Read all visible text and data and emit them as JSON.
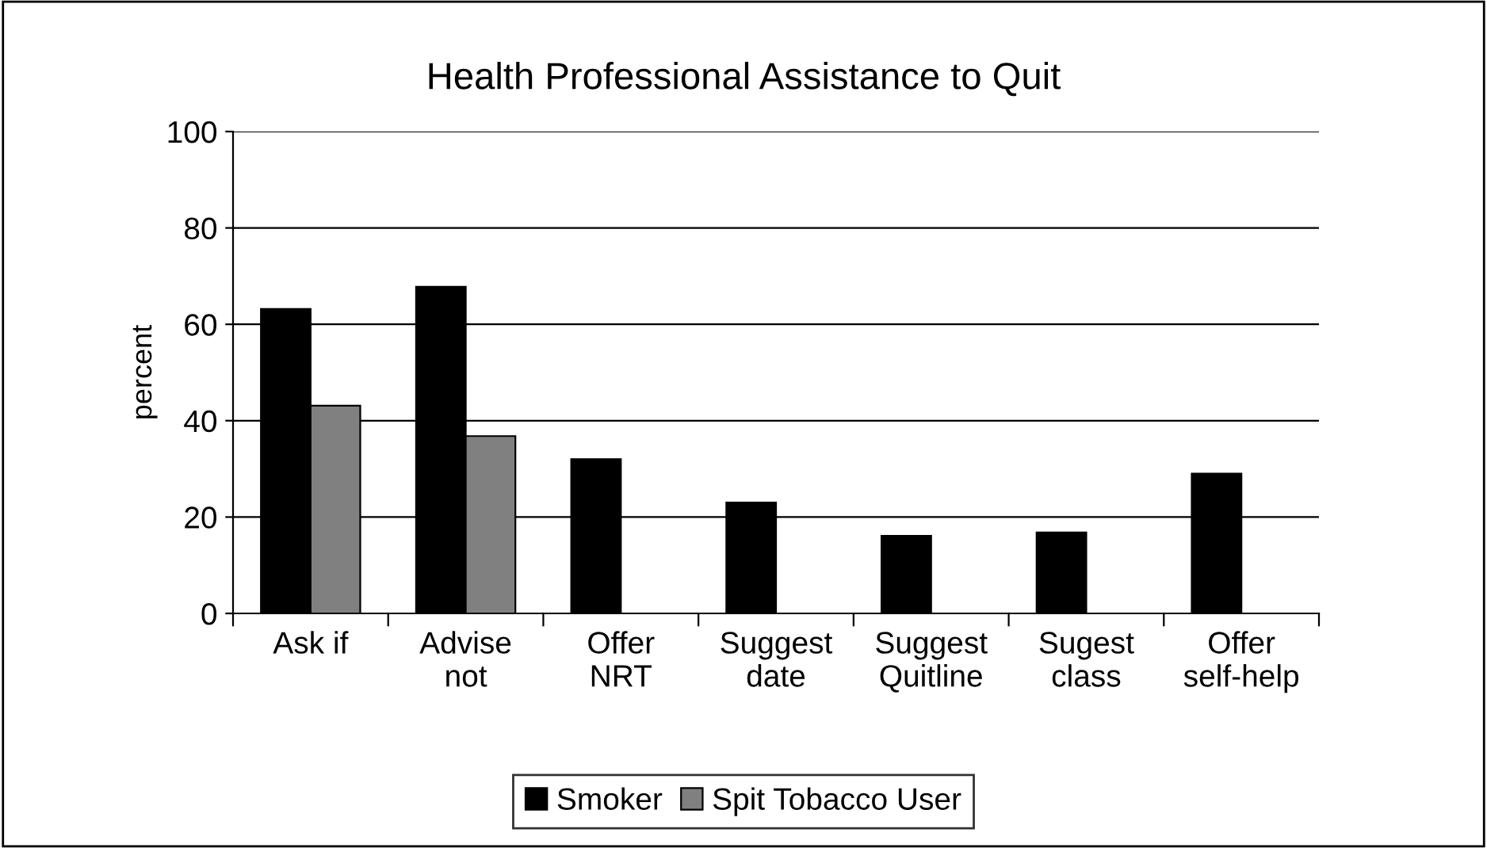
{
  "chart_data": {
    "type": "bar",
    "title": "Health Professional Assistance to Quit",
    "ylabel": "percent",
    "categories": [
      "Ask if",
      "Advise\nnot",
      "Offer\nNRT",
      "Suggest\ndate",
      "Suggest\nQuitline",
      "Sugest\nclass",
      "Offer\nself-help"
    ],
    "series": [
      {
        "name": "Smoker",
        "color": "#000000",
        "values": [
          63.2,
          67.8,
          32,
          23,
          16.1,
          16.8,
          29
        ]
      },
      {
        "name": "Spit Tobacco User",
        "color": "#808080",
        "values": [
          43.1,
          36.8,
          null,
          null,
          null,
          null,
          null
        ]
      }
    ],
    "ylim": [
      0,
      100
    ],
    "yticks": [
      0,
      20,
      40,
      60,
      80,
      100
    ],
    "grid": "y",
    "legend": "bottom"
  }
}
